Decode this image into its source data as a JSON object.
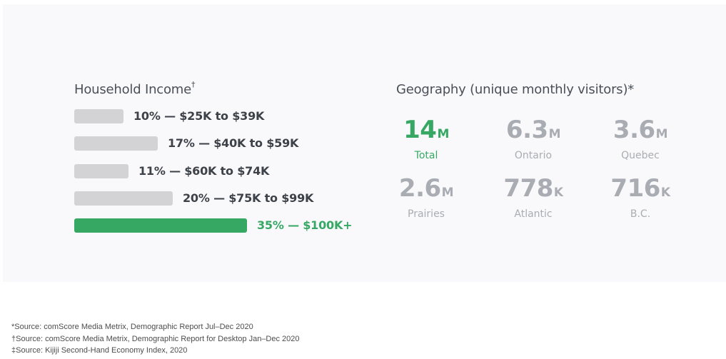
{
  "chart_data": [
    {
      "type": "bar",
      "orientation": "horizontal",
      "title": "Household Income",
      "title_mark": "†",
      "categories": [
        "$25K to $39K",
        "$40K to $59K",
        "$60K to $74K",
        "$75K to $99K",
        "$100K+"
      ],
      "values": [
        10,
        17,
        11,
        20,
        35
      ],
      "unit": "%",
      "labels": [
        "10% — $25K to $39K",
        "17% — $40K to $59K",
        "11% — $60K to $74K",
        "20% — $75K to $99K",
        "35% — $100K+"
      ],
      "highlight_index": 4,
      "colors": {
        "bar": "#d3d3d6",
        "highlight": "#37a864",
        "label": "#3d4148"
      },
      "grid": false,
      "axes_visible": false
    },
    {
      "type": "table",
      "title": "Geography (unique monthly visitors)*",
      "items": [
        {
          "value": "14",
          "unit": "M",
          "label": "Total",
          "highlight": true
        },
        {
          "value": "6.3",
          "unit": "M",
          "label": "Ontario"
        },
        {
          "value": "3.6",
          "unit": "M",
          "label": "Quebec"
        },
        {
          "value": "2.6",
          "unit": "M",
          "label": "Prairies"
        },
        {
          "value": "778",
          "unit": "K",
          "label": "Atlantic"
        },
        {
          "value": "716",
          "unit": "K",
          "label": "B.C."
        }
      ],
      "colors": {
        "muted": "#a9acb2",
        "highlight": "#37a864"
      }
    }
  ],
  "footnotes": [
    "*Source: comScore Media Metrix, Demographic Report Jul–Dec 2020",
    "†Source: comScore Media Metrix, Demographic Report for Desktop Jan–Dec 2020",
    "‡Source: Kijiji Second-Hand Economy Index, 2020"
  ]
}
